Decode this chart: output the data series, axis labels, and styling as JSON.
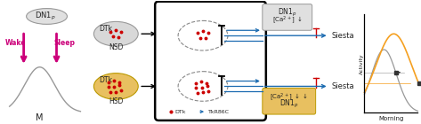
{
  "bg_color": "#ffffff",
  "magenta": "#cc007a",
  "orange": "#f5a020",
  "blue": "#1a6ab0",
  "dark": "#222222",
  "red_dot": "#cc0000",
  "red_tbar": "#cc0000",
  "nsd_ellipse_color": "#d8d8d8",
  "hsd_ellipse_color": "#e8c060",
  "siesta_label": "Siesta",
  "morning_label": "Morning",
  "activity_label": "Activity",
  "m_label": "M",
  "wake_label": "Wake",
  "sleep_label": "Sleep",
  "nsd_label": "NSD",
  "hsd_label": "HSD",
  "dtk_label": "DTk",
  "dtk_legend": "DTk",
  "tkr_legend": "TkR86C"
}
